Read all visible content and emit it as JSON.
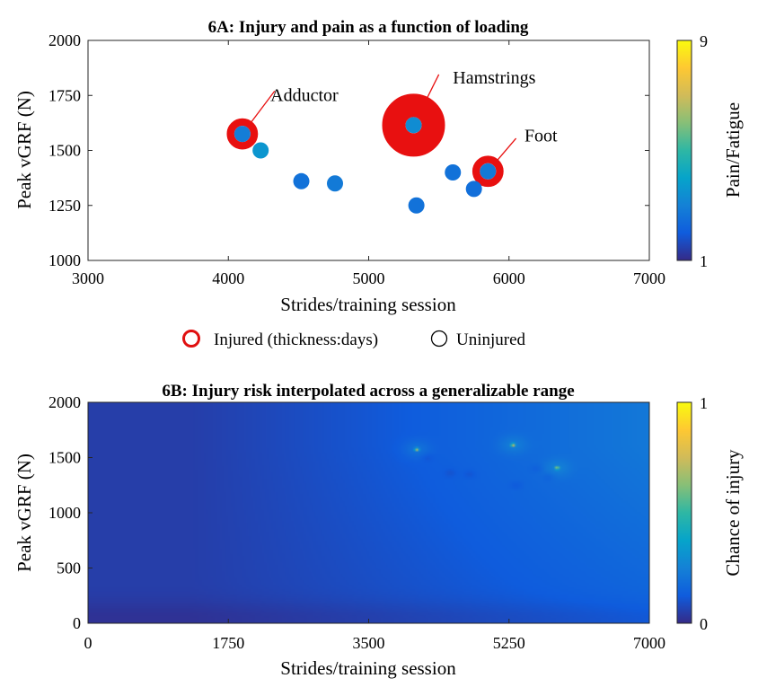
{
  "chart_data": [
    {
      "type": "scatter",
      "title": "6A: Injury and pain as a function of loading",
      "xlabel": "Strides/training session",
      "ylabel": "Peak vGRF (N)",
      "xlim": [
        3000,
        7000
      ],
      "ylim": [
        1000,
        2000
      ],
      "xticks": [
        "3000",
        "4000",
        "5000",
        "6000",
        "7000"
      ],
      "yticks": [
        "1000",
        "1250",
        "1500",
        "1750",
        "2000"
      ],
      "grid": false,
      "colorbar": {
        "label": "Pain/Fatigue",
        "min": 1,
        "max": 9,
        "tick_labels": [
          "1",
          "9"
        ]
      },
      "points": [
        {
          "x": 4100,
          "y": 1575,
          "pain": 2.9,
          "injured": true,
          "injury_days": 8
        },
        {
          "x": 4230,
          "y": 1500,
          "pain": 3.6,
          "injured": false
        },
        {
          "x": 4520,
          "y": 1360,
          "pain": 2.6,
          "injured": false
        },
        {
          "x": 4760,
          "y": 1350,
          "pain": 2.8,
          "injured": false
        },
        {
          "x": 5320,
          "y": 1615,
          "pain": 3.3,
          "injured": true,
          "injury_days": 40
        },
        {
          "x": 5340,
          "y": 1250,
          "pain": 2.6,
          "injured": false
        },
        {
          "x": 5600,
          "y": 1400,
          "pain": 2.6,
          "injured": false
        },
        {
          "x": 5750,
          "y": 1325,
          "pain": 2.5,
          "injured": false
        },
        {
          "x": 5850,
          "y": 1405,
          "pain": 2.8,
          "injured": true,
          "injury_days": 8
        }
      ],
      "annotations": [
        {
          "text": "Adductor",
          "x_from": 4100,
          "y_from": 1575,
          "x_to": 4330,
          "y_to": 1770,
          "label_x": 4300,
          "label_y": 1725
        },
        {
          "text": "Hamstrings",
          "x_from": 5320,
          "y_from": 1615,
          "x_to": 5500,
          "y_to": 1845,
          "label_x": 5600,
          "label_y": 1805
        },
        {
          "text": "Foot",
          "x_from": 5850,
          "y_from": 1405,
          "x_to": 6050,
          "y_to": 1555,
          "label_x": 6110,
          "label_y": 1540
        }
      ],
      "legend": {
        "placement": "bottom",
        "entries": [
          {
            "label": "Injured (thickness:days)",
            "color": "#e01010"
          },
          {
            "label": "Uninjured",
            "color": "#000000"
          }
        ]
      }
    },
    {
      "type": "heatmap",
      "title": "6B: Injury risk interpolated across a generalizable range",
      "xlabel": "Strides/training session",
      "ylabel": "Peak vGRF (N)",
      "xlim": [
        0,
        7000
      ],
      "ylim": [
        0,
        2000
      ],
      "xticks": [
        "0",
        "1750",
        "3500",
        "5250",
        "7000"
      ],
      "yticks": [
        "0",
        "500",
        "1000",
        "1500",
        "2000"
      ],
      "colorbar": {
        "label": "Chance of injury",
        "min": 0,
        "max": 1,
        "tick_labels": [
          "0",
          "1"
        ]
      },
      "hotspots": [
        {
          "x": 4100,
          "y": 1575,
          "value": 0.85
        },
        {
          "x": 5300,
          "y": 1615,
          "value": 0.9
        },
        {
          "x": 5850,
          "y": 1405,
          "value": 0.8
        }
      ]
    }
  ]
}
